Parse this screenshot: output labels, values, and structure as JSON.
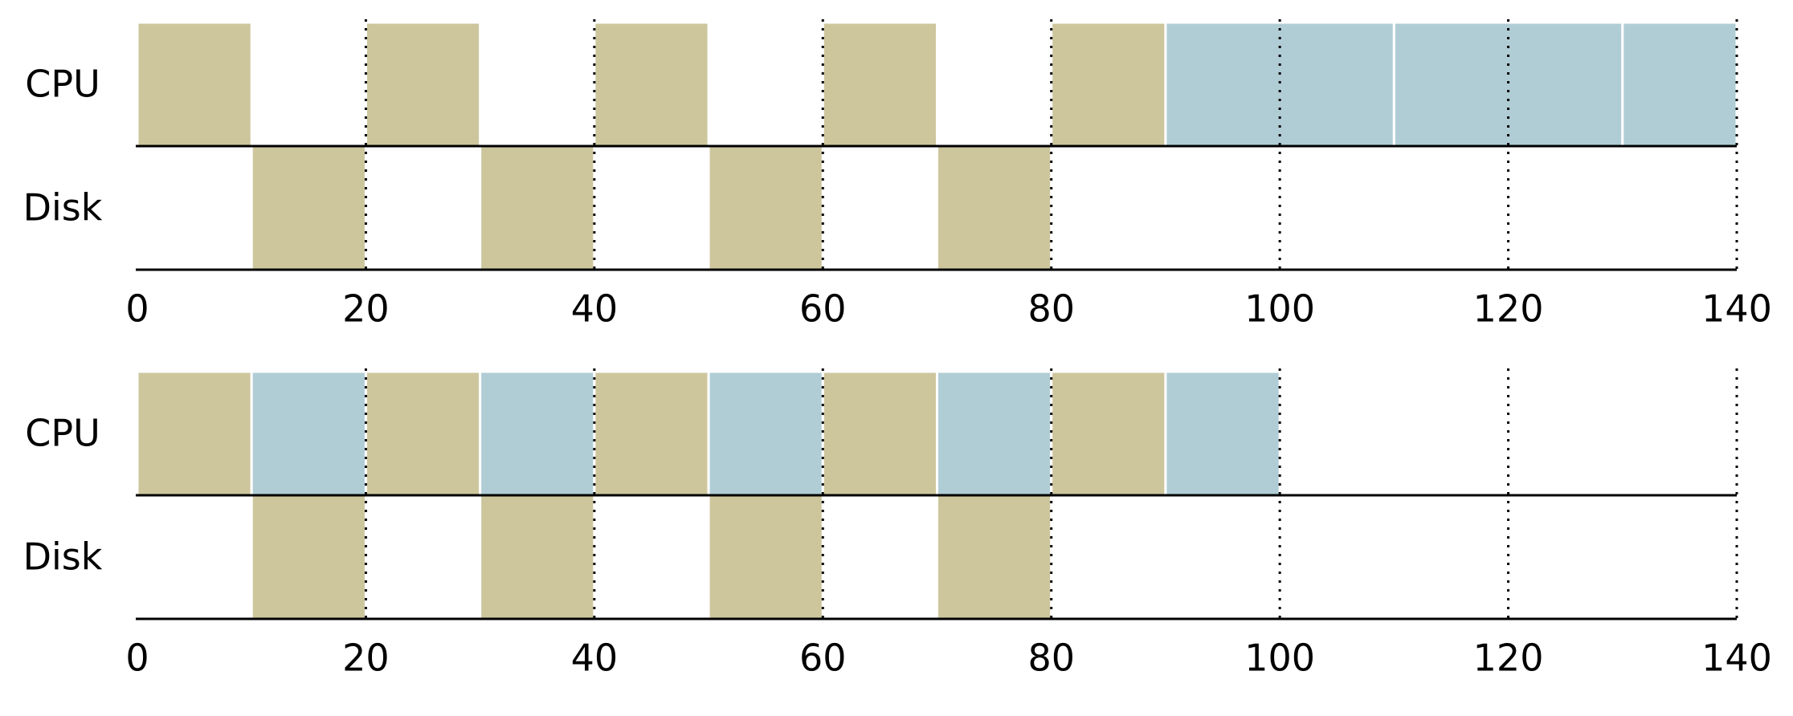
{
  "chart_data": [
    {
      "type": "gantt",
      "rows": [
        "CPU",
        "Disk"
      ],
      "xlim": [
        0,
        140
      ],
      "xticks": [
        0,
        20,
        40,
        60,
        80,
        100,
        120,
        140
      ],
      "grid": true,
      "segments": [
        {
          "row": 0,
          "start": 0,
          "end": 10,
          "color": "#cdc69d"
        },
        {
          "row": 0,
          "start": 20,
          "end": 30,
          "color": "#cdc69d"
        },
        {
          "row": 0,
          "start": 40,
          "end": 50,
          "color": "#cdc69d"
        },
        {
          "row": 0,
          "start": 60,
          "end": 70,
          "color": "#cdc69d"
        },
        {
          "row": 0,
          "start": 80,
          "end": 90,
          "color": "#cdc69d"
        },
        {
          "row": 0,
          "start": 90,
          "end": 110,
          "color": "#b0cdd6"
        },
        {
          "row": 0,
          "start": 110,
          "end": 130,
          "color": "#b0cdd6"
        },
        {
          "row": 0,
          "start": 130,
          "end": 140,
          "color": "#b0cdd6"
        },
        {
          "row": 1,
          "start": 10,
          "end": 20,
          "color": "#cdc69d"
        },
        {
          "row": 1,
          "start": 30,
          "end": 40,
          "color": "#cdc69d"
        },
        {
          "row": 1,
          "start": 50,
          "end": 60,
          "color": "#cdc69d"
        },
        {
          "row": 1,
          "start": 70,
          "end": 80,
          "color": "#cdc69d"
        }
      ]
    },
    {
      "type": "gantt",
      "rows": [
        "CPU",
        "Disk"
      ],
      "xlim": [
        0,
        140
      ],
      "xticks": [
        0,
        20,
        40,
        60,
        80,
        100,
        120,
        140
      ],
      "grid": true,
      "segments": [
        {
          "row": 0,
          "start": 0,
          "end": 10,
          "color": "#cdc69d"
        },
        {
          "row": 0,
          "start": 10,
          "end": 20,
          "color": "#b0cdd6"
        },
        {
          "row": 0,
          "start": 20,
          "end": 30,
          "color": "#cdc69d"
        },
        {
          "row": 0,
          "start": 30,
          "end": 40,
          "color": "#b0cdd6"
        },
        {
          "row": 0,
          "start": 40,
          "end": 50,
          "color": "#cdc69d"
        },
        {
          "row": 0,
          "start": 50,
          "end": 60,
          "color": "#b0cdd6"
        },
        {
          "row": 0,
          "start": 60,
          "end": 70,
          "color": "#cdc69d"
        },
        {
          "row": 0,
          "start": 70,
          "end": 80,
          "color": "#b0cdd6"
        },
        {
          "row": 0,
          "start": 80,
          "end": 90,
          "color": "#cdc69d"
        },
        {
          "row": 0,
          "start": 90,
          "end": 100,
          "color": "#b0cdd6"
        },
        {
          "row": 1,
          "start": 10,
          "end": 20,
          "color": "#cdc69d"
        },
        {
          "row": 1,
          "start": 30,
          "end": 40,
          "color": "#cdc69d"
        },
        {
          "row": 1,
          "start": 50,
          "end": 60,
          "color": "#cdc69d"
        },
        {
          "row": 1,
          "start": 70,
          "end": 80,
          "color": "#cdc69d"
        }
      ]
    }
  ]
}
